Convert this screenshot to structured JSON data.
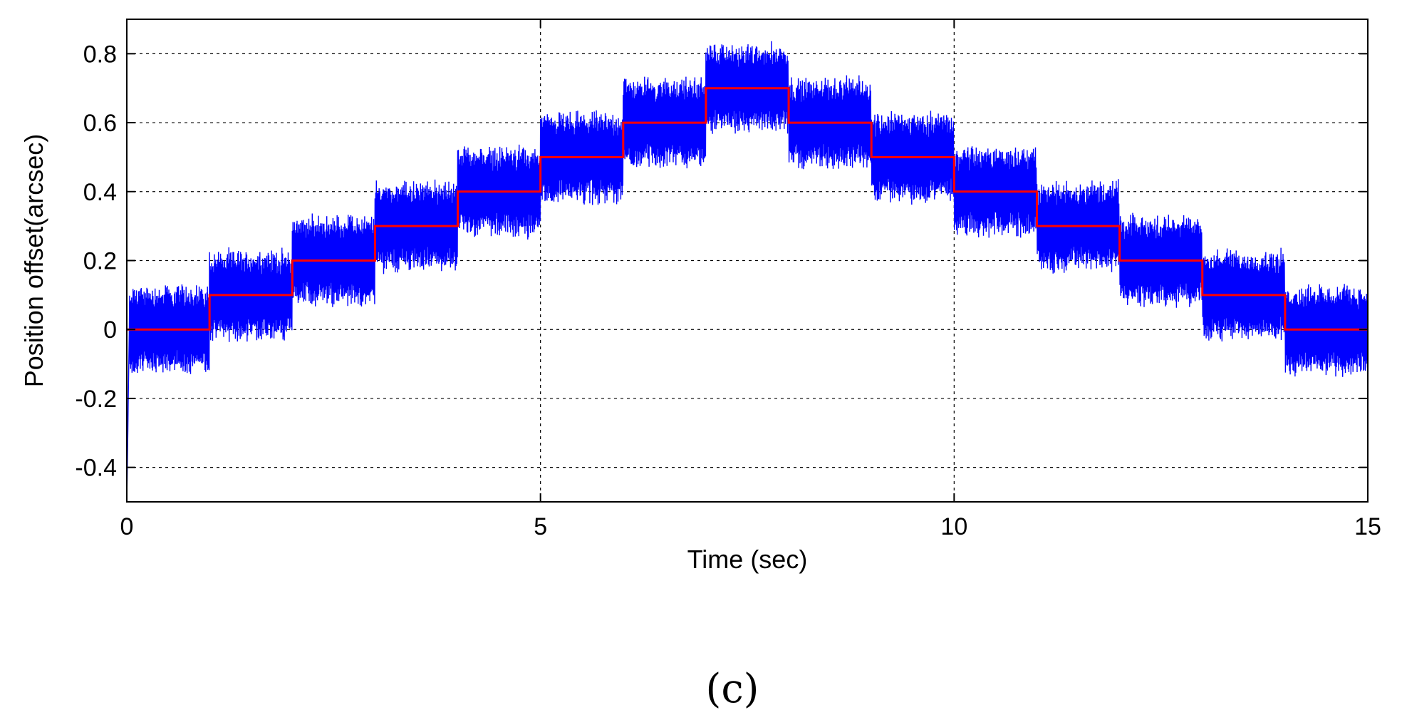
{
  "chart_data": {
    "type": "line",
    "title": "",
    "xlabel": "Time (sec)",
    "ylabel": "Position offset(arcsec)",
    "xlim": [
      0,
      15
    ],
    "ylim": [
      -0.5,
      0.9
    ],
    "x_ticks": [
      0,
      5,
      10,
      15
    ],
    "x_tick_labels": [
      "0",
      "5",
      "10",
      "15"
    ],
    "y_ticks": [
      -0.4,
      -0.2,
      0,
      0.2,
      0.4,
      0.6,
      0.8
    ],
    "y_tick_labels": [
      "-0.4",
      "-0.2",
      "0",
      "0.2",
      "0.4",
      "0.6",
      "0.8"
    ],
    "grid": true,
    "legend": "none",
    "panel_label": "(c)",
    "series": [
      {
        "color": "#0000ff",
        "style": "noisy step response",
        "step_times": [
          0,
          1,
          2,
          3,
          4,
          5,
          6,
          7,
          8,
          9,
          10,
          11,
          12,
          13,
          14,
          15
        ],
        "levels": [
          0,
          0.1,
          0.2,
          0.3,
          0.4,
          0.5,
          0.6,
          0.7,
          0.6,
          0.5,
          0.4,
          0.3,
          0.2,
          0.1,
          0
        ],
        "oscillation_amplitude": 0.12,
        "initial_transient_min": -0.5
      },
      {
        "color": "#ff0000",
        "style": "step reference",
        "step_times": [
          0,
          1,
          2,
          3,
          4,
          5,
          6,
          7,
          8,
          9,
          10,
          11,
          12,
          13,
          14,
          15
        ],
        "levels": [
          0,
          0.1,
          0.2,
          0.3,
          0.4,
          0.5,
          0.6,
          0.7,
          0.6,
          0.5,
          0.4,
          0.3,
          0.2,
          0.1,
          0
        ]
      }
    ]
  }
}
